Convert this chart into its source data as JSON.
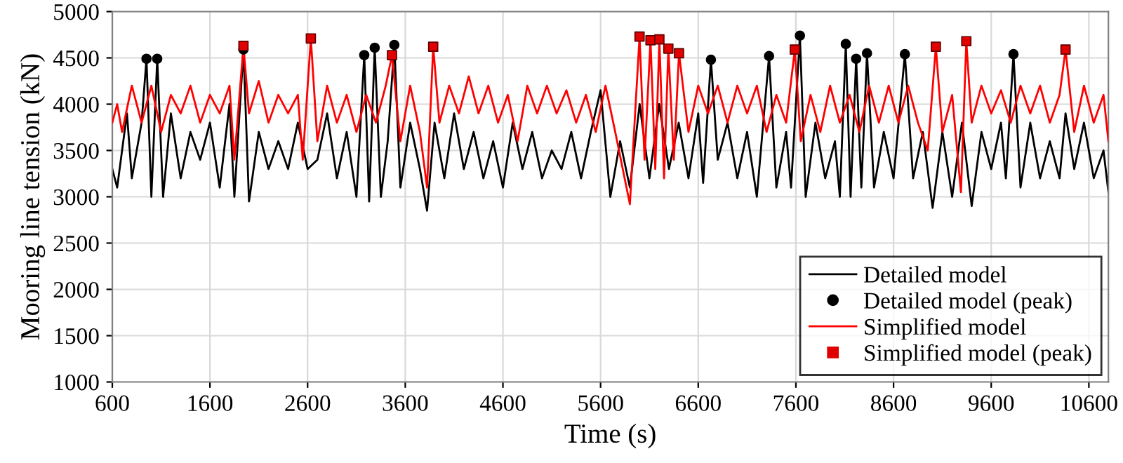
{
  "chart_data": {
    "type": "line",
    "xlabel": "Time (s)",
    "ylabel": "Mooring line tension (kN)",
    "xlim": [
      600,
      10800
    ],
    "ylim": [
      1000,
      5000
    ],
    "xticks": [
      600,
      1600,
      2600,
      3600,
      4600,
      5600,
      6600,
      7600,
      8600,
      9600,
      10600
    ],
    "yticks": [
      1000,
      1500,
      2000,
      2500,
      3000,
      3500,
      4000,
      4500,
      5000
    ],
    "grid": true,
    "legend": "bottom right",
    "series": [
      {
        "name": "Detailed model",
        "color": "#000000",
        "marker": "none",
        "x": [
          600,
          650,
          750,
          800,
          900,
          950,
          1000,
          1060,
          1120,
          1200,
          1300,
          1400,
          1500,
          1600,
          1700,
          1800,
          1850,
          1943,
          2000,
          2100,
          2200,
          2300,
          2400,
          2500,
          2600,
          2700,
          2800,
          2900,
          3000,
          3100,
          3180,
          3230,
          3287,
          3350,
          3420,
          3488,
          3550,
          3650,
          3750,
          3823,
          3900,
          4000,
          4100,
          4200,
          4300,
          4400,
          4500,
          4600,
          4700,
          4800,
          4900,
          5000,
          5100,
          5200,
          5300,
          5400,
          5500,
          5600,
          5700,
          5800,
          5900,
          6000,
          6100,
          6200,
          6300,
          6400,
          6500,
          6600,
          6650,
          6730,
          6800,
          6900,
          7000,
          7100,
          7200,
          7325,
          7400,
          7500,
          7550,
          7641,
          7700,
          7800,
          7900,
          8000,
          8050,
          8111,
          8160,
          8217,
          8270,
          8328,
          8400,
          8500,
          8600,
          8716,
          8800,
          8900,
          9000,
          9100,
          9200,
          9300,
          9400,
          9500,
          9600,
          9700,
          9750,
          9828,
          9900,
          10000,
          10100,
          10200,
          10300,
          10361,
          10450,
          10550,
          10650,
          10750,
          10800
        ],
        "values": [
          3300,
          3100,
          3900,
          3200,
          3800,
          4490,
          3000,
          4490,
          3000,
          3900,
          3200,
          3700,
          3400,
          3800,
          3100,
          4000,
          3000,
          4590,
          2950,
          3700,
          3300,
          3600,
          3300,
          3800,
          3300,
          3400,
          3900,
          3200,
          3700,
          3000,
          4530,
          2950,
          4610,
          3000,
          3600,
          4640,
          3100,
          3800,
          3300,
          2850,
          3800,
          3200,
          3900,
          3300,
          3700,
          3200,
          3600,
          3100,
          3800,
          3300,
          3700,
          3200,
          3500,
          3300,
          3700,
          3200,
          3700,
          4150,
          3000,
          3600,
          3100,
          4000,
          3200,
          4000,
          3300,
          3800,
          3200,
          3900,
          3150,
          4480,
          3400,
          3800,
          3200,
          3700,
          3000,
          4520,
          3100,
          3700,
          3100,
          4740,
          3000,
          3800,
          3200,
          3600,
          3000,
          4650,
          3000,
          4490,
          3100,
          4550,
          3100,
          3700,
          3200,
          4540,
          3200,
          3700,
          2880,
          3700,
          3000,
          3800,
          2900,
          3700,
          3300,
          3800,
          3200,
          4540,
          3100,
          3800,
          3200,
          3600,
          3200,
          3900,
          3300,
          3800,
          3200,
          3500,
          3050
        ]
      },
      {
        "name": "Detailed model (peak)",
        "type": "scatter",
        "color": "#000000",
        "marker": "circle",
        "x": [
          950,
          1060,
          1943,
          3180,
          3287,
          3488,
          6730,
          7325,
          7641,
          8111,
          8217,
          8328,
          8716,
          9828
        ],
        "values": [
          4490,
          4490,
          4590,
          4530,
          4610,
          4640,
          4480,
          4520,
          4740,
          4650,
          4490,
          4550,
          4540,
          4540
        ]
      },
      {
        "name": "Simplified model",
        "color": "#ff0000",
        "marker": "none",
        "x": [
          600,
          650,
          700,
          800,
          900,
          1000,
          1100,
          1200,
          1300,
          1400,
          1500,
          1600,
          1700,
          1800,
          1850,
          1943,
          2000,
          2100,
          2200,
          2300,
          2400,
          2500,
          2550,
          2633,
          2700,
          2800,
          2900,
          3000,
          3100,
          3200,
          3300,
          3400,
          3464,
          3550,
          3650,
          3750,
          3823,
          3886,
          3950,
          4050,
          4150,
          4250,
          4350,
          4450,
          4550,
          4650,
          4750,
          4850,
          4950,
          5050,
          5150,
          5250,
          5350,
          5450,
          5550,
          5650,
          5750,
          5900,
          5999,
          6050,
          6111,
          6160,
          6202,
          6250,
          6294,
          6350,
          6403,
          6500,
          6600,
          6700,
          6800,
          6900,
          7000,
          7100,
          7200,
          7300,
          7400,
          7500,
          7589,
          7650,
          7750,
          7850,
          7950,
          8050,
          8150,
          8250,
          8350,
          8450,
          8550,
          8650,
          8750,
          8850,
          8950,
          9033,
          9100,
          9200,
          9290,
          9345,
          9400,
          9500,
          9600,
          9700,
          9800,
          9900,
          10000,
          10100,
          10200,
          10300,
          10361,
          10450,
          10550,
          10650,
          10750,
          10800
        ],
        "values": [
          3800,
          4000,
          3700,
          4200,
          3800,
          4200,
          3700,
          4100,
          3900,
          4200,
          3800,
          4100,
          3900,
          4200,
          3400,
          4630,
          3900,
          4250,
          3800,
          4100,
          3900,
          4100,
          3400,
          4710,
          3600,
          4200,
          3800,
          4100,
          3700,
          4100,
          3800,
          4200,
          4530,
          3600,
          4200,
          3700,
          3100,
          4620,
          3800,
          4200,
          3900,
          4300,
          3900,
          4200,
          3800,
          4100,
          3600,
          4200,
          3900,
          4200,
          3900,
          4150,
          3800,
          4100,
          3700,
          4200,
          3700,
          2920,
          4730,
          3400,
          4690,
          3300,
          4700,
          3200,
          4600,
          3400,
          4550,
          3700,
          4200,
          3900,
          4200,
          3800,
          4200,
          3900,
          4200,
          3700,
          4100,
          3800,
          4590,
          3600,
          4100,
          3700,
          4200,
          3800,
          4100,
          3700,
          4200,
          3800,
          4200,
          3800,
          4200,
          3800,
          3500,
          4620,
          3700,
          4100,
          3050,
          4680,
          3800,
          4200,
          3900,
          4150,
          3800,
          4200,
          3900,
          4200,
          3800,
          4100,
          4590,
          3700,
          4200,
          3800,
          4100,
          3600
        ]
      },
      {
        "name": "Simplified model (peak)",
        "type": "scatter",
        "color": "#e00000",
        "marker": "square",
        "x": [
          1943,
          2633,
          3464,
          3886,
          5999,
          6111,
          6202,
          6294,
          6403,
          7589,
          9033,
          9345,
          10361
        ],
        "values": [
          4630,
          4710,
          4530,
          4620,
          4730,
          4690,
          4700,
          4600,
          4550,
          4590,
          4620,
          4680,
          4590
        ]
      }
    ]
  }
}
